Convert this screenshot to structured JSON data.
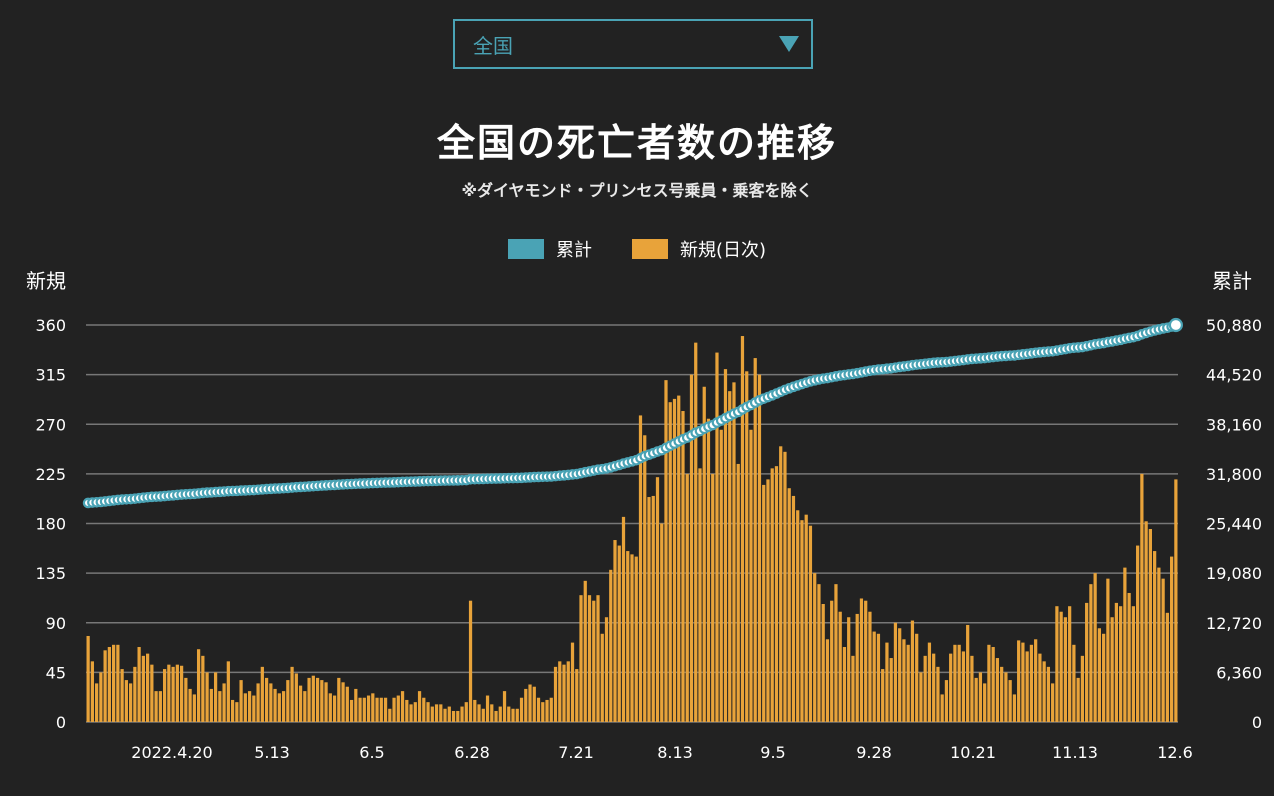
{
  "selector": {
    "value": "全国"
  },
  "colors": {
    "background": "#222222",
    "cumulative": "#4aa3b5",
    "daily": "#e8a33a",
    "grid": "#777777",
    "dot_fill": "#ffffff"
  },
  "chart_data": {
    "type": "bar",
    "title": "全国の死亡者数の推移",
    "subtitle": "※ダイヤモンド・プリンセス号乗員・乗客を除く",
    "legend": [
      {
        "name": "累計",
        "color": "#4aa3b5"
      },
      {
        "name": "新規(日次)",
        "color": "#e8a33a"
      }
    ],
    "left_axis": {
      "label": "新規",
      "ticks": [
        "0",
        "45",
        "90",
        "135",
        "180",
        "225",
        "270",
        "315",
        "360"
      ],
      "range": [
        0,
        360
      ]
    },
    "right_axis": {
      "label": "累計",
      "ticks": [
        "0",
        "6,360",
        "12,720",
        "19,080",
        "25,440",
        "31,800",
        "38,160",
        "44,520",
        "50,880"
      ],
      "range": [
        0,
        50880
      ]
    },
    "x_labels": [
      "2022.4.20",
      "5.13",
      "6.5",
      "6.28",
      "7.21",
      "8.13",
      "9.5",
      "9.28",
      "10.21",
      "11.13",
      "12.6"
    ],
    "grid": true,
    "series": [
      {
        "name": "新規(日次)",
        "type": "bar",
        "values": [
          78,
          55,
          35,
          45,
          65,
          68,
          70,
          70,
          48,
          38,
          35,
          50,
          68,
          60,
          62,
          52,
          28,
          28,
          48,
          52,
          50,
          52,
          51,
          40,
          30,
          25,
          66,
          60,
          45,
          30,
          45,
          28,
          35,
          55,
          20,
          18,
          38,
          26,
          28,
          24,
          35,
          50,
          40,
          35,
          30,
          26,
          28,
          38,
          50,
          44,
          33,
          28,
          40,
          42,
          40,
          38,
          36,
          26,
          24,
          40,
          36,
          32,
          20,
          30,
          22,
          22,
          24,
          26,
          22,
          22,
          22,
          12,
          22,
          24,
          28,
          20,
          16,
          18,
          28,
          22,
          18,
          14,
          16,
          16,
          12,
          14,
          10,
          10,
          14,
          18,
          110,
          20,
          16,
          12,
          24,
          16,
          10,
          14,
          28,
          14,
          12,
          12,
          22,
          30,
          34,
          32,
          22,
          18,
          20,
          22,
          50,
          55,
          52,
          55,
          72,
          48,
          115,
          128,
          115,
          110,
          115,
          80,
          95,
          138,
          165,
          160,
          186,
          155,
          152,
          150,
          278,
          260,
          204,
          205,
          222,
          180,
          310,
          290,
          293,
          296,
          282,
          225,
          315,
          344,
          230,
          304,
          275,
          225,
          335,
          265,
          320,
          300,
          308,
          234,
          350,
          318,
          265,
          330,
          315,
          215,
          220,
          230,
          232,
          250,
          245,
          212,
          205,
          192,
          183,
          188,
          178,
          135,
          125,
          107,
          75,
          110,
          125,
          100,
          68,
          95,
          60,
          98,
          112,
          110,
          100,
          82,
          80,
          48,
          72,
          58,
          90,
          85,
          75,
          70,
          92,
          80,
          45,
          60,
          72,
          62,
          50,
          25,
          38,
          62,
          70,
          70,
          64,
          88,
          60,
          40,
          45,
          35,
          70,
          68,
          58,
          50,
          45,
          38,
          25,
          74,
          72,
          64,
          70,
          75,
          62,
          55,
          50,
          35,
          105,
          100,
          95,
          105,
          70,
          40,
          60,
          108,
          125,
          135,
          85,
          80,
          130,
          95,
          108,
          105,
          140,
          117,
          105,
          160,
          225,
          182,
          175,
          155,
          140,
          130,
          99,
          150,
          220
        ]
      },
      {
        "name": "累計",
        "type": "line",
        "start_value": 28000,
        "end_value": 50880
      }
    ]
  }
}
